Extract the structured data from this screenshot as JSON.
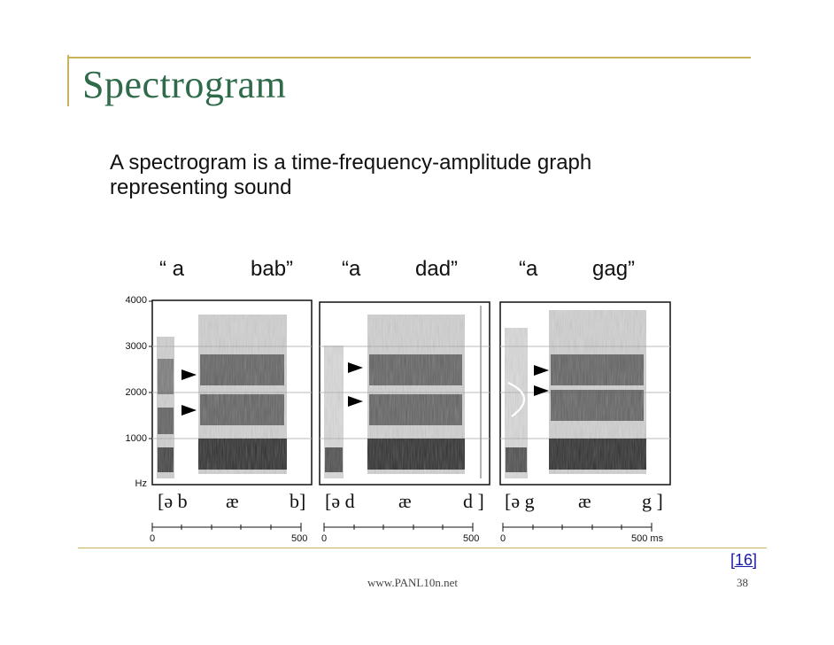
{
  "slide": {
    "title": "Spectrogram",
    "body": "A spectrogram is a time-frequency-amplitude graph representing sound",
    "footer_url": "www.PANL10n.net",
    "page_number": "38",
    "reference": "[16]"
  },
  "utterances": [
    {
      "q": "“ a",
      "word": "bab”"
    },
    {
      "q": "“a",
      "word": "dad”"
    },
    {
      "q": "“a",
      "word": "gag”"
    }
  ],
  "y_axis": {
    "ticks": [
      "4000",
      "3000",
      "2000",
      "1000"
    ],
    "unit": "Hz"
  },
  "ipa": [
    {
      "open": "[ə b",
      "vowel": "æ",
      "close": "b]"
    },
    {
      "open": "[ə d",
      "vowel": "æ",
      "close": "d ]"
    },
    {
      "open": "[ə  g",
      "vowel": "æ",
      "close": "g ]"
    }
  ],
  "time_scale": {
    "start": "0",
    "end": "500",
    "end_with_unit": "500 ms"
  },
  "colors": {
    "title": "#2f6b4a",
    "frame": "#c9b25a",
    "reference": "#1a1aa8"
  }
}
